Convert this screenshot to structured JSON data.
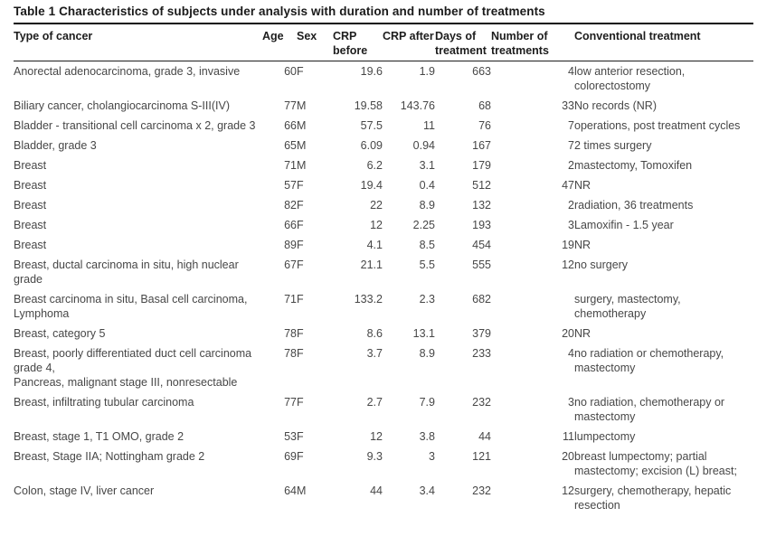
{
  "title": "Table 1 Characteristics of subjects under analysis with duration and number of treatments",
  "columns": [
    {
      "key": "type",
      "label": "Type of cancer"
    },
    {
      "key": "age",
      "label": "Age"
    },
    {
      "key": "sex",
      "label": "Sex"
    },
    {
      "key": "crp_before",
      "label": "CRP before"
    },
    {
      "key": "crp_after",
      "label": "CRP after"
    },
    {
      "key": "days",
      "label": "Days of treatment"
    },
    {
      "key": "treatments",
      "label": "Number of treatments"
    },
    {
      "key": "conventional",
      "label": "Conventional treatment"
    }
  ],
  "rows": [
    {
      "type": "Anorectal adenocarcinoma, grade 3, invasive",
      "age": "60",
      "sex": "F",
      "crp_before": "19.6",
      "crp_after": "1.9",
      "days": "663",
      "treatments": "4",
      "conventional": "low anterior resection, colorectostomy"
    },
    {
      "type": "Biliary cancer, cholangiocarcinoma S-III(IV)",
      "age": "77",
      "sex": "M",
      "crp_before": "19.58",
      "crp_after": "143.76",
      "days": "68",
      "treatments": "33",
      "conventional": "No records (NR)"
    },
    {
      "type": "Bladder - transitional cell carcinoma x 2, grade 3",
      "age": "66",
      "sex": "M",
      "crp_before": "57.5",
      "crp_after": "11",
      "days": "76",
      "treatments": "7",
      "conventional": "operations, post treatment cycles"
    },
    {
      "type": "Bladder, grade 3",
      "age": "65",
      "sex": "M",
      "crp_before": "6.09",
      "crp_after": "0.94",
      "days": "167",
      "treatments": "7",
      "conventional": "2 times surgery"
    },
    {
      "type": "Breast",
      "age": "71",
      "sex": "M",
      "crp_before": "6.2",
      "crp_after": "3.1",
      "days": "179",
      "treatments": "2",
      "conventional": "mastectomy, Tomoxifen"
    },
    {
      "type": "Breast",
      "age": "57",
      "sex": "F",
      "crp_before": "19.4",
      "crp_after": "0.4",
      "days": "512",
      "treatments": "47",
      "conventional": "NR"
    },
    {
      "type": "Breast",
      "age": "82",
      "sex": "F",
      "crp_before": "22",
      "crp_after": "8.9",
      "days": "132",
      "treatments": "2",
      "conventional": "radiation, 36 treatments"
    },
    {
      "type": "Breast",
      "age": "66",
      "sex": "F",
      "crp_before": "12",
      "crp_after": "2.25",
      "days": "193",
      "treatments": "3",
      "conventional": "Lamoxifin - 1.5 year"
    },
    {
      "type": "Breast",
      "age": "89",
      "sex": "F",
      "crp_before": "4.1",
      "crp_after": "8.5",
      "days": "454",
      "treatments": "19",
      "conventional": "NR"
    },
    {
      "type": "Breast, ductal carcinoma in situ, high nuclear grade",
      "age": "67",
      "sex": "F",
      "crp_before": "21.1",
      "crp_after": "5.5",
      "days": "555",
      "treatments": "12",
      "conventional": "no surgery"
    },
    {
      "type": "Breast carcinoma in situ, Basal cell carcinoma, Lymphoma",
      "age": "71",
      "sex": "F",
      "crp_before": "133.2",
      "crp_after": "2.3",
      "days": "682",
      "treatments": "",
      "conventional": "surgery, mastectomy, chemotherapy"
    },
    {
      "type": "Breast, category 5",
      "age": "78",
      "sex": "F",
      "crp_before": "8.6",
      "crp_after": "13.1",
      "days": "379",
      "treatments": "20",
      "conventional": "NR"
    },
    {
      "type": "Breast, poorly differentiated duct cell carcinoma grade 4,\nPancreas, malignant stage III, nonresectable",
      "age": "78",
      "sex": "F",
      "crp_before": "3.7",
      "crp_after": "8.9",
      "days": "233",
      "treatments": "4",
      "conventional": "no radiation or chemotherapy, mastectomy"
    },
    {
      "type": "Breast, infiltrating tubular carcinoma",
      "age": "77",
      "sex": "F",
      "crp_before": "2.7",
      "crp_after": "7.9",
      "days": "232",
      "treatments": "3",
      "conventional": "no radiation, chemotherapy or mastectomy"
    },
    {
      "type": "Breast, stage 1, T1 OMO, grade 2",
      "age": "53",
      "sex": "F",
      "crp_before": "12",
      "crp_after": "3.8",
      "days": "44",
      "treatments": "11",
      "conventional": "lumpectomy"
    },
    {
      "type": "Breast, Stage IIA; Nottingham grade 2",
      "age": "69",
      "sex": "F",
      "crp_before": "9.3",
      "crp_after": "3",
      "days": "121",
      "treatments": "20",
      "conventional": "breast lumpectomy; partial mastectomy; excision (L) breast;"
    },
    {
      "type": "Colon, stage IV, liver cancer",
      "age": "64",
      "sex": "M",
      "crp_before": "44",
      "crp_after": "3.4",
      "days": "232",
      "treatments": "12",
      "conventional": "surgery, chemotherapy, hepatic resection"
    }
  ]
}
